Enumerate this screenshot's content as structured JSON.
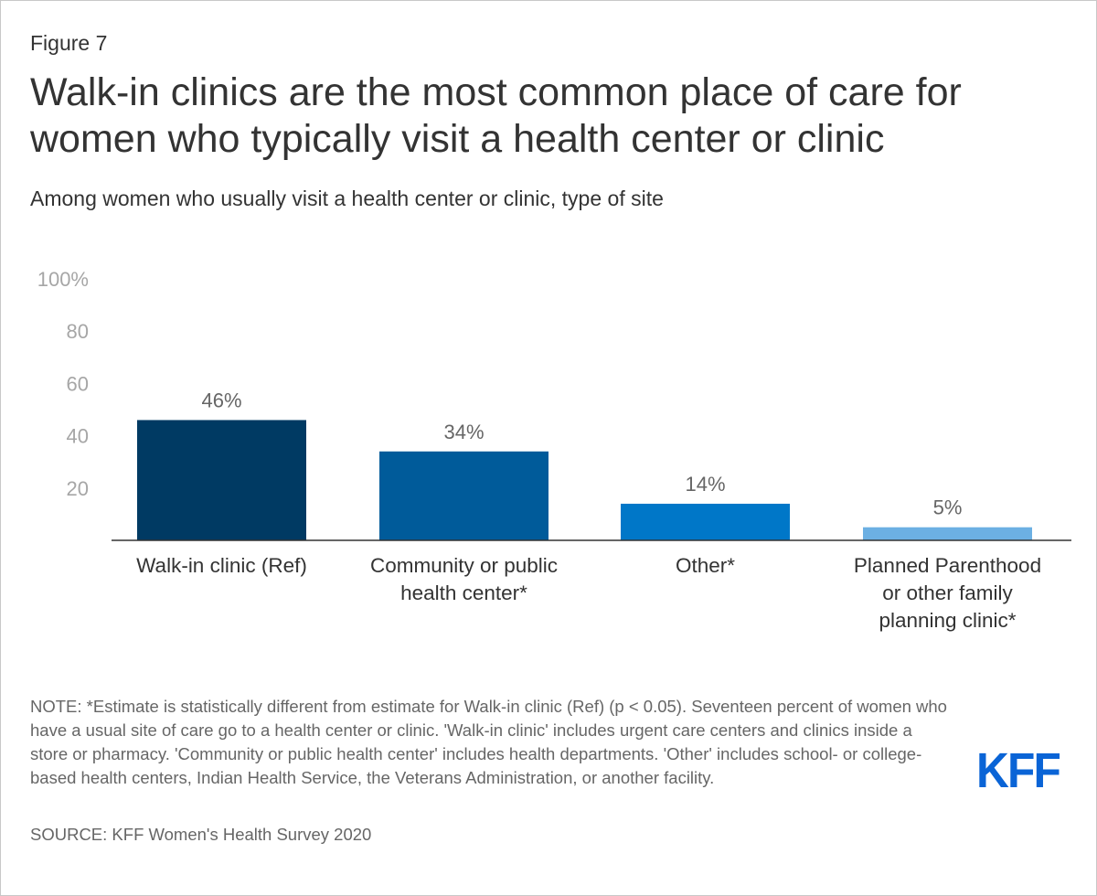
{
  "figure_label": "Figure 7",
  "title": "Walk-in clinics are the most common place of care for women who typically visit a health center or clinic",
  "subtitle": "Among women who usually visit a health center or clinic, type of site",
  "note": "NOTE: *Estimate is statistically different from estimate for Walk-in clinic (Ref) (p < 0.05). Seventeen percent of women who have a usual site of care go to a health center or clinic. 'Walk-in clinic' includes urgent care centers and clinics inside a store or pharmacy. 'Community or public health center' includes health departments. 'Other' includes school- or college-based health centers, Indian Health Service, the Veterans Administration, or another facility.",
  "source": "SOURCE: KFF Women's Health Survey 2020",
  "logo_text": "KFF",
  "chart_data": {
    "type": "bar",
    "categories": [
      [
        "Walk-in clinic (Ref)"
      ],
      [
        "Community or public",
        "health center*"
      ],
      [
        "Other*"
      ],
      [
        "Planned Parenthood",
        "or other family",
        "planning clinic*"
      ]
    ],
    "values": [
      46,
      34,
      14,
      5
    ],
    "value_labels": [
      "46%",
      "34%",
      "14%",
      "5%"
    ],
    "colors": [
      "#003a63",
      "#005b9a",
      "#0077c8",
      "#6cb0e3"
    ],
    "ylim": [
      0,
      100
    ],
    "yticks": [
      20,
      40,
      60,
      80,
      100
    ],
    "ytick_labels": [
      "20",
      "40",
      "60",
      "80",
      "100%"
    ],
    "xlabel": "",
    "ylabel": "",
    "grid": false
  }
}
